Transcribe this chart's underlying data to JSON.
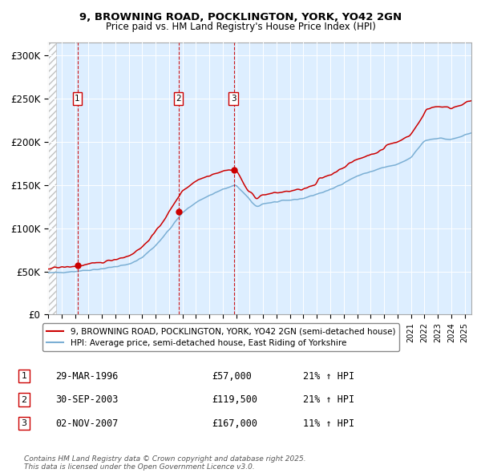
{
  "title_line1": "9, BROWNING ROAD, POCKLINGTON, YORK, YO42 2GN",
  "title_line2": "Price paid vs. HM Land Registry's House Price Index (HPI)",
  "ylabel_ticks": [
    "£0",
    "£50K",
    "£100K",
    "£150K",
    "£200K",
    "£250K",
    "£300K"
  ],
  "ytick_vals": [
    0,
    50000,
    100000,
    150000,
    200000,
    250000,
    300000
  ],
  "ylim": [
    0,
    315000
  ],
  "transactions": [
    {
      "label": "1",
      "date": "29-MAR-1996",
      "price": 57000,
      "pct": "21%",
      "dir": "↑",
      "x_year": 1996.23
    },
    {
      "label": "2",
      "date": "30-SEP-2003",
      "price": 119500,
      "pct": "21%",
      "dir": "↑",
      "x_year": 2003.75
    },
    {
      "label": "3",
      "date": "02-NOV-2007",
      "price": 167000,
      "pct": "11%",
      "dir": "↑",
      "x_year": 2007.84
    }
  ],
  "legend_line1": "9, BROWNING ROAD, POCKLINGTON, YORK, YO42 2GN (semi-detached house)",
  "legend_line2": "HPI: Average price, semi-detached house, East Riding of Yorkshire",
  "footer": "Contains HM Land Registry data © Crown copyright and database right 2025.\nThis data is licensed under the Open Government Licence v3.0.",
  "line_color_red": "#cc0000",
  "line_color_blue": "#7bafd4",
  "background_color": "#ddeeff",
  "dashed_line_color": "#cc0000",
  "transaction_box_color": "#cc0000",
  "xmin": 1994.0,
  "xmax": 2025.5
}
